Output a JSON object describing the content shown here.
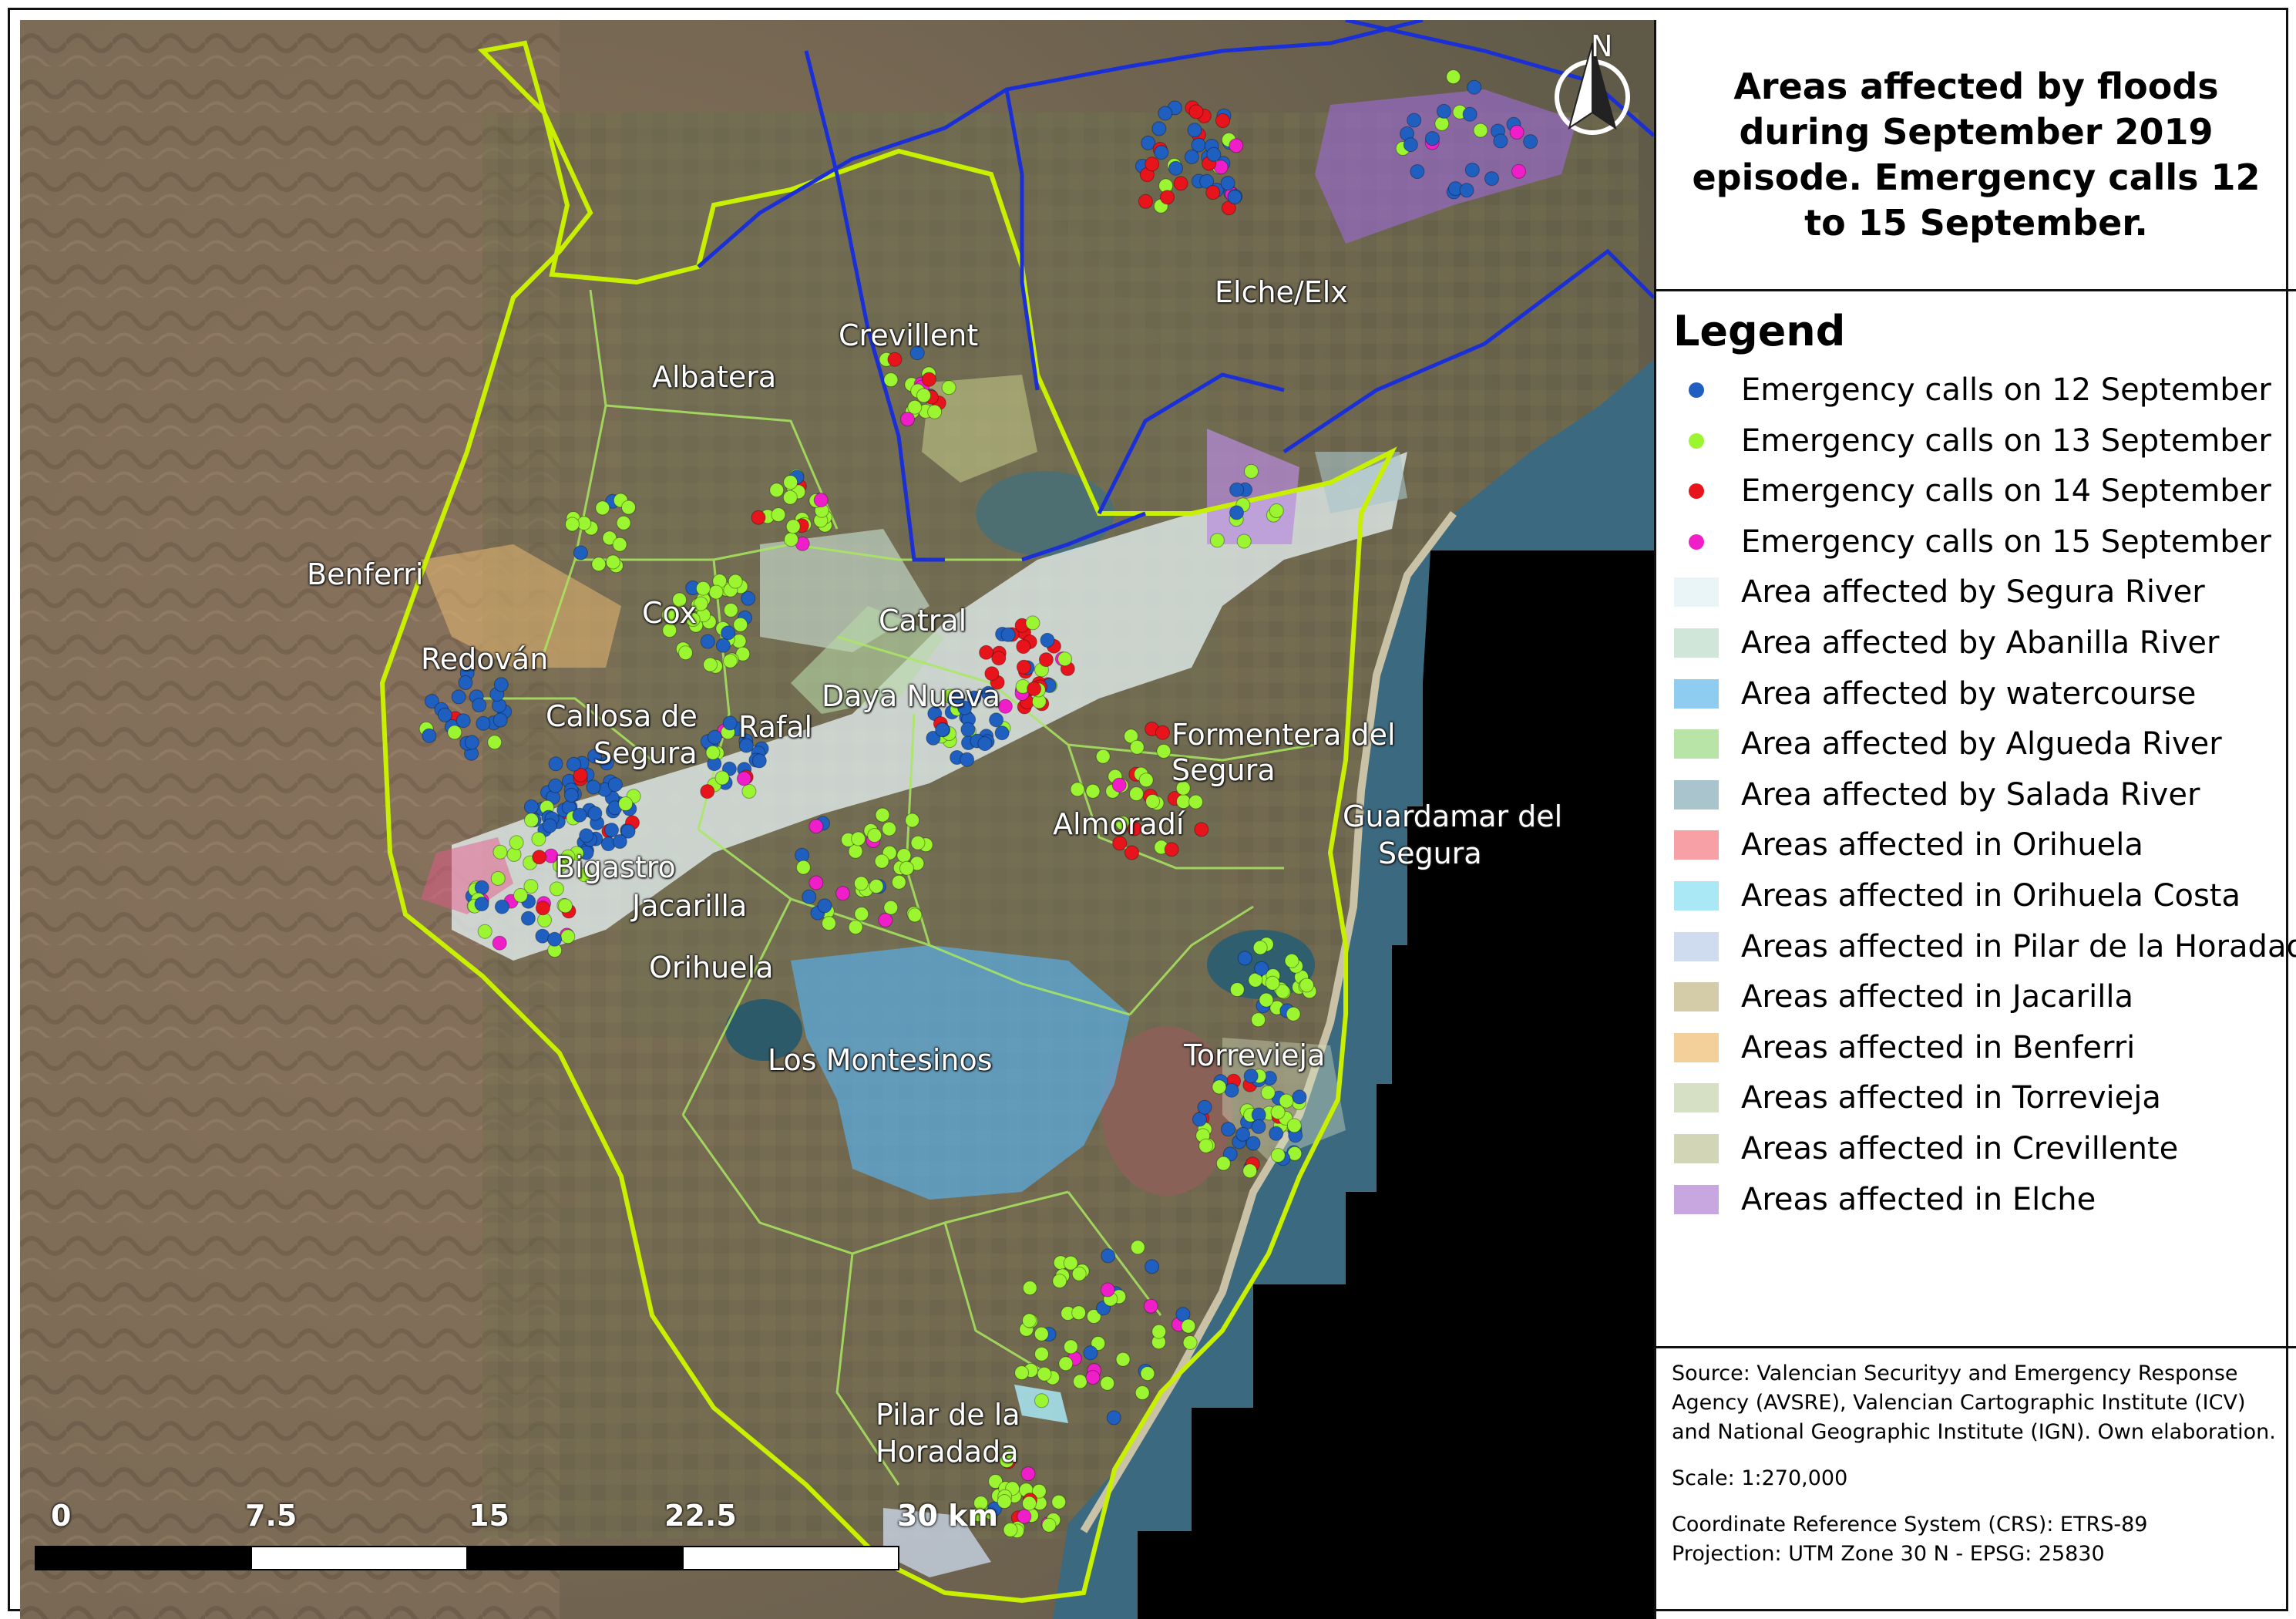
{
  "title": "Areas affected by floods during September 2019 episode. Emergency calls 12 to 15 September.",
  "legend": {
    "heading": "Legend",
    "items": [
      {
        "label": "Emergency calls on 12 September",
        "symbol": "dot",
        "color": "#1f5fbf"
      },
      {
        "label": "Emergency calls on 13 September",
        "symbol": "dot",
        "color": "#9cf531"
      },
      {
        "label": "Emergency calls on 14 September",
        "symbol": "dot",
        "color": "#e8141c"
      },
      {
        "label": "Emergency calls on 15 September",
        "symbol": "dot",
        "color": "#f01ec8"
      },
      {
        "label": "Area affected by Segura River",
        "symbol": "patch",
        "color": "#e9f5f7"
      },
      {
        "label": "Area affected by Abanilla River",
        "symbol": "patch",
        "color": "#cfe6d8"
      },
      {
        "label": "Area affected by watercourse",
        "symbol": "patch",
        "color": "#8fcdf0"
      },
      {
        "label": "Area affected by Algueda River",
        "symbol": "patch",
        "color": "#b8e4a8"
      },
      {
        "label": "Area affected by Salada River",
        "symbol": "patch",
        "color": "#a9c4cc"
      },
      {
        "label": "Areas affected in Orihuela",
        "symbol": "patch",
        "color": "#f7a0a6"
      },
      {
        "label": "Areas affected in Orihuela Costa",
        "symbol": "patch",
        "color": "#a9e8f4"
      },
      {
        "label": "Areas affected in Pilar de la Horadada",
        "symbol": "patch",
        "color": "#cfdcf0"
      },
      {
        "label": "Areas affected in Jacarilla",
        "symbol": "patch",
        "color": "#d4cba8"
      },
      {
        "label": "Areas affected in Benferri",
        "symbol": "patch",
        "color": "#f3d09a"
      },
      {
        "label": "Areas affected in Torrevieja",
        "symbol": "patch",
        "color": "#d6e0c4"
      },
      {
        "label": "Areas affected in Crevillente",
        "symbol": "patch",
        "color": "#d2d6b6"
      },
      {
        "label": "Areas affected in Elche",
        "symbol": "patch",
        "color": "#c8a6e0"
      }
    ]
  },
  "source": {
    "text": "Source: Valencian Securityy and Emergency Response Agency (AVSRE), Valencian Cartographic Institute (ICV) and National Geographic Institute (IGN). Own elaboration.",
    "scale": "Scale: 1:270,000",
    "crs": "Coordinate Reference System (CRS): ETRS-89",
    "projection": "Projection: UTM Zone 30 N - EPSG: 25830"
  },
  "north_arrow": "N",
  "scale_bar": {
    "labels": [
      "0",
      "7.5",
      "15",
      "22.5",
      "30 km"
    ]
  },
  "places": {
    "albatera": "Albatera",
    "crevillent": "Crevillent",
    "elche": "Elche/Elx",
    "benferri": "Benferri",
    "cox": "Cox",
    "catral": "Catral",
    "redovan": "Redován",
    "callosa1": "Callosa de",
    "callosa2": "Segura",
    "rafal": "Rafal",
    "daya": "Daya Nueva",
    "formentera1": "Formentera del",
    "formentera2": "Segura",
    "guardamar1": "Guardamar del",
    "guardamar2": "Segura",
    "almoradi": "Almoradí",
    "bigastro": "Bigastro",
    "jacarilla": "Jacarilla",
    "orihuela": "Orihuela",
    "montesinos": "Los Montesinos",
    "torrevieja": "Torrevieja",
    "pilar1": "Pilar de la",
    "pilar2": "Horadada"
  },
  "colors": {
    "boundary": "#c8f000",
    "river_basin": "#1a2fd6",
    "sea": "#3b6a80",
    "nodata": "#000000"
  }
}
